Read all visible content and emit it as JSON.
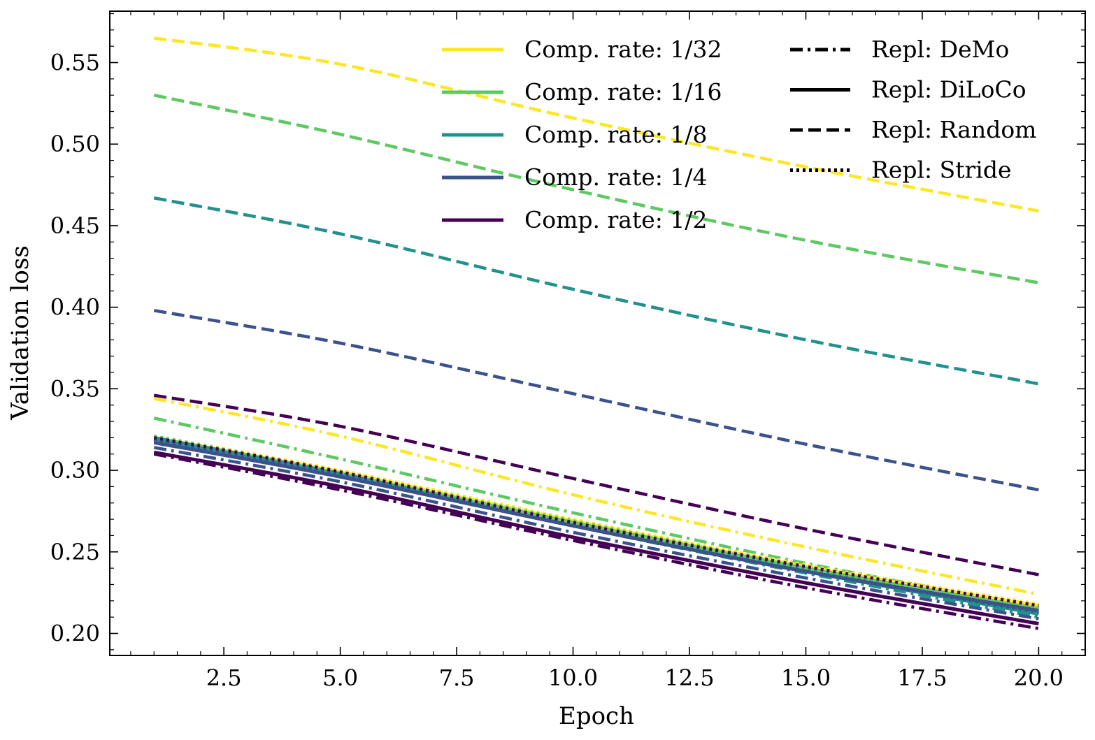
{
  "chart_data": {
    "type": "line",
    "title": "",
    "xlabel": "Epoch",
    "ylabel": "Validation loss",
    "xlim": [
      0.05,
      21.0
    ],
    "ylim": [
      0.1865,
      0.5815
    ],
    "xticks": [
      2.5,
      5.0,
      7.5,
      10.0,
      12.5,
      15.0,
      17.5,
      20.0
    ],
    "xtick_labels": [
      "2.5",
      "5.0",
      "7.5",
      "10.0",
      "12.5",
      "15.0",
      "17.5",
      "20.0"
    ],
    "yticks": [
      0.2,
      0.25,
      0.3,
      0.35,
      0.4,
      0.45,
      0.5,
      0.55
    ],
    "ytick_labels": [
      "0.20",
      "0.25",
      "0.30",
      "0.35",
      "0.40",
      "0.45",
      "0.50",
      "0.55"
    ],
    "grid": false,
    "legend_position": "top-right",
    "legend_colors": [
      {
        "label": "Comp. rate: 1/32",
        "color": "#fde725"
      },
      {
        "label": "Comp. rate: 1/16",
        "color": "#5ec962"
      },
      {
        "label": "Comp. rate: 1/8",
        "color": "#21918c"
      },
      {
        "label": "Comp. rate: 1/4",
        "color": "#3b528b"
      },
      {
        "label": "Comp. rate: 1/2",
        "color": "#440154"
      }
    ],
    "legend_styles": [
      {
        "label": "Repl: DeMo",
        "style": "dashdot"
      },
      {
        "label": "Repl: DiLoCo",
        "style": "solid"
      },
      {
        "label": "Repl: Random",
        "style": "dashed"
      },
      {
        "label": "Repl: Stride",
        "style": "dotted"
      }
    ],
    "x": [
      1,
      5,
      10,
      15,
      20
    ],
    "series": [
      {
        "rate": "1/32",
        "method": "Random",
        "color": "#fde725",
        "style": "dashed",
        "values": [
          0.565,
          0.549,
          0.516,
          0.486,
          0.459
        ]
      },
      {
        "rate": "1/16",
        "method": "Random",
        "color": "#5ec962",
        "style": "dashed",
        "values": [
          0.53,
          0.506,
          0.472,
          0.441,
          0.415
        ]
      },
      {
        "rate": "1/8",
        "method": "Random",
        "color": "#21918c",
        "style": "dashed",
        "values": [
          0.467,
          0.445,
          0.411,
          0.38,
          0.353
        ]
      },
      {
        "rate": "1/4",
        "method": "Random",
        "color": "#3b528b",
        "style": "dashed",
        "values": [
          0.398,
          0.378,
          0.347,
          0.316,
          0.288
        ]
      },
      {
        "rate": "1/2",
        "method": "Random",
        "color": "#440154",
        "style": "dashed",
        "values": [
          0.346,
          0.327,
          0.295,
          0.264,
          0.236
        ]
      },
      {
        "rate": "1/32",
        "method": "DeMo",
        "color": "#fde725",
        "style": "dashdot",
        "values": [
          0.344,
          0.321,
          0.285,
          0.253,
          0.224
        ]
      },
      {
        "rate": "1/16",
        "method": "DeMo",
        "color": "#5ec962",
        "style": "dashdot",
        "values": [
          0.332,
          0.307,
          0.274,
          0.243,
          0.216
        ]
      },
      {
        "rate": "1/32",
        "method": "DiLoCo",
        "color": "#fde725",
        "style": "solid",
        "values": [
          0.32,
          0.299,
          0.269,
          0.241,
          0.217
        ]
      },
      {
        "rate": "1/32",
        "method": "Stride",
        "color": "#fde725",
        "style": "dotted",
        "values": [
          0.321,
          0.3,
          0.27,
          0.242,
          0.218
        ]
      },
      {
        "rate": "1/16",
        "method": "DiLoCo",
        "color": "#5ec962",
        "style": "solid",
        "values": [
          0.32,
          0.298,
          0.268,
          0.24,
          0.215
        ]
      },
      {
        "rate": "1/16",
        "method": "Stride",
        "color": "#5ec962",
        "style": "dotted",
        "values": [
          0.321,
          0.299,
          0.269,
          0.241,
          0.216
        ]
      },
      {
        "rate": "1/8",
        "method": "DiLoCo",
        "color": "#21918c",
        "style": "solid",
        "values": [
          0.319,
          0.297,
          0.266,
          0.238,
          0.212
        ]
      },
      {
        "rate": "1/8",
        "method": "Stride",
        "color": "#21918c",
        "style": "dotted",
        "values": [
          0.32,
          0.298,
          0.267,
          0.239,
          0.213
        ]
      },
      {
        "rate": "1/8",
        "method": "DeMo",
        "color": "#21918c",
        "style": "dashdot",
        "values": [
          0.32,
          0.298,
          0.266,
          0.237,
          0.21
        ]
      },
      {
        "rate": "1/2",
        "method": "DiLoCo",
        "color": "#440154",
        "style": "solid",
        "values": [
          0.311,
          0.29,
          0.259,
          0.231,
          0.206
        ]
      },
      {
        "rate": "1/2",
        "method": "DeMo",
        "color": "#440154",
        "style": "dashdot",
        "values": [
          0.31,
          0.288,
          0.257,
          0.228,
          0.203
        ]
      },
      {
        "rate": "1/2",
        "method": "Stride",
        "color": "#440154",
        "style": "dotted",
        "values": [
          0.32,
          0.299,
          0.268,
          0.241,
          0.217
        ]
      },
      {
        "rate": "1/4",
        "method": "DeMo",
        "color": "#3b528b",
        "style": "dashdot",
        "values": [
          0.314,
          0.293,
          0.262,
          0.234,
          0.209
        ]
      },
      {
        "rate": "1/4",
        "method": "Stride",
        "color": "#3b528b",
        "style": "dotted",
        "values": [
          0.318,
          0.297,
          0.266,
          0.238,
          0.213
        ]
      },
      {
        "rate": "1/4",
        "method": "DiLoCo",
        "color": "#3b528b",
        "style": "solid",
        "values": [
          0.317,
          0.296,
          0.266,
          0.238,
          0.214
        ]
      }
    ]
  }
}
